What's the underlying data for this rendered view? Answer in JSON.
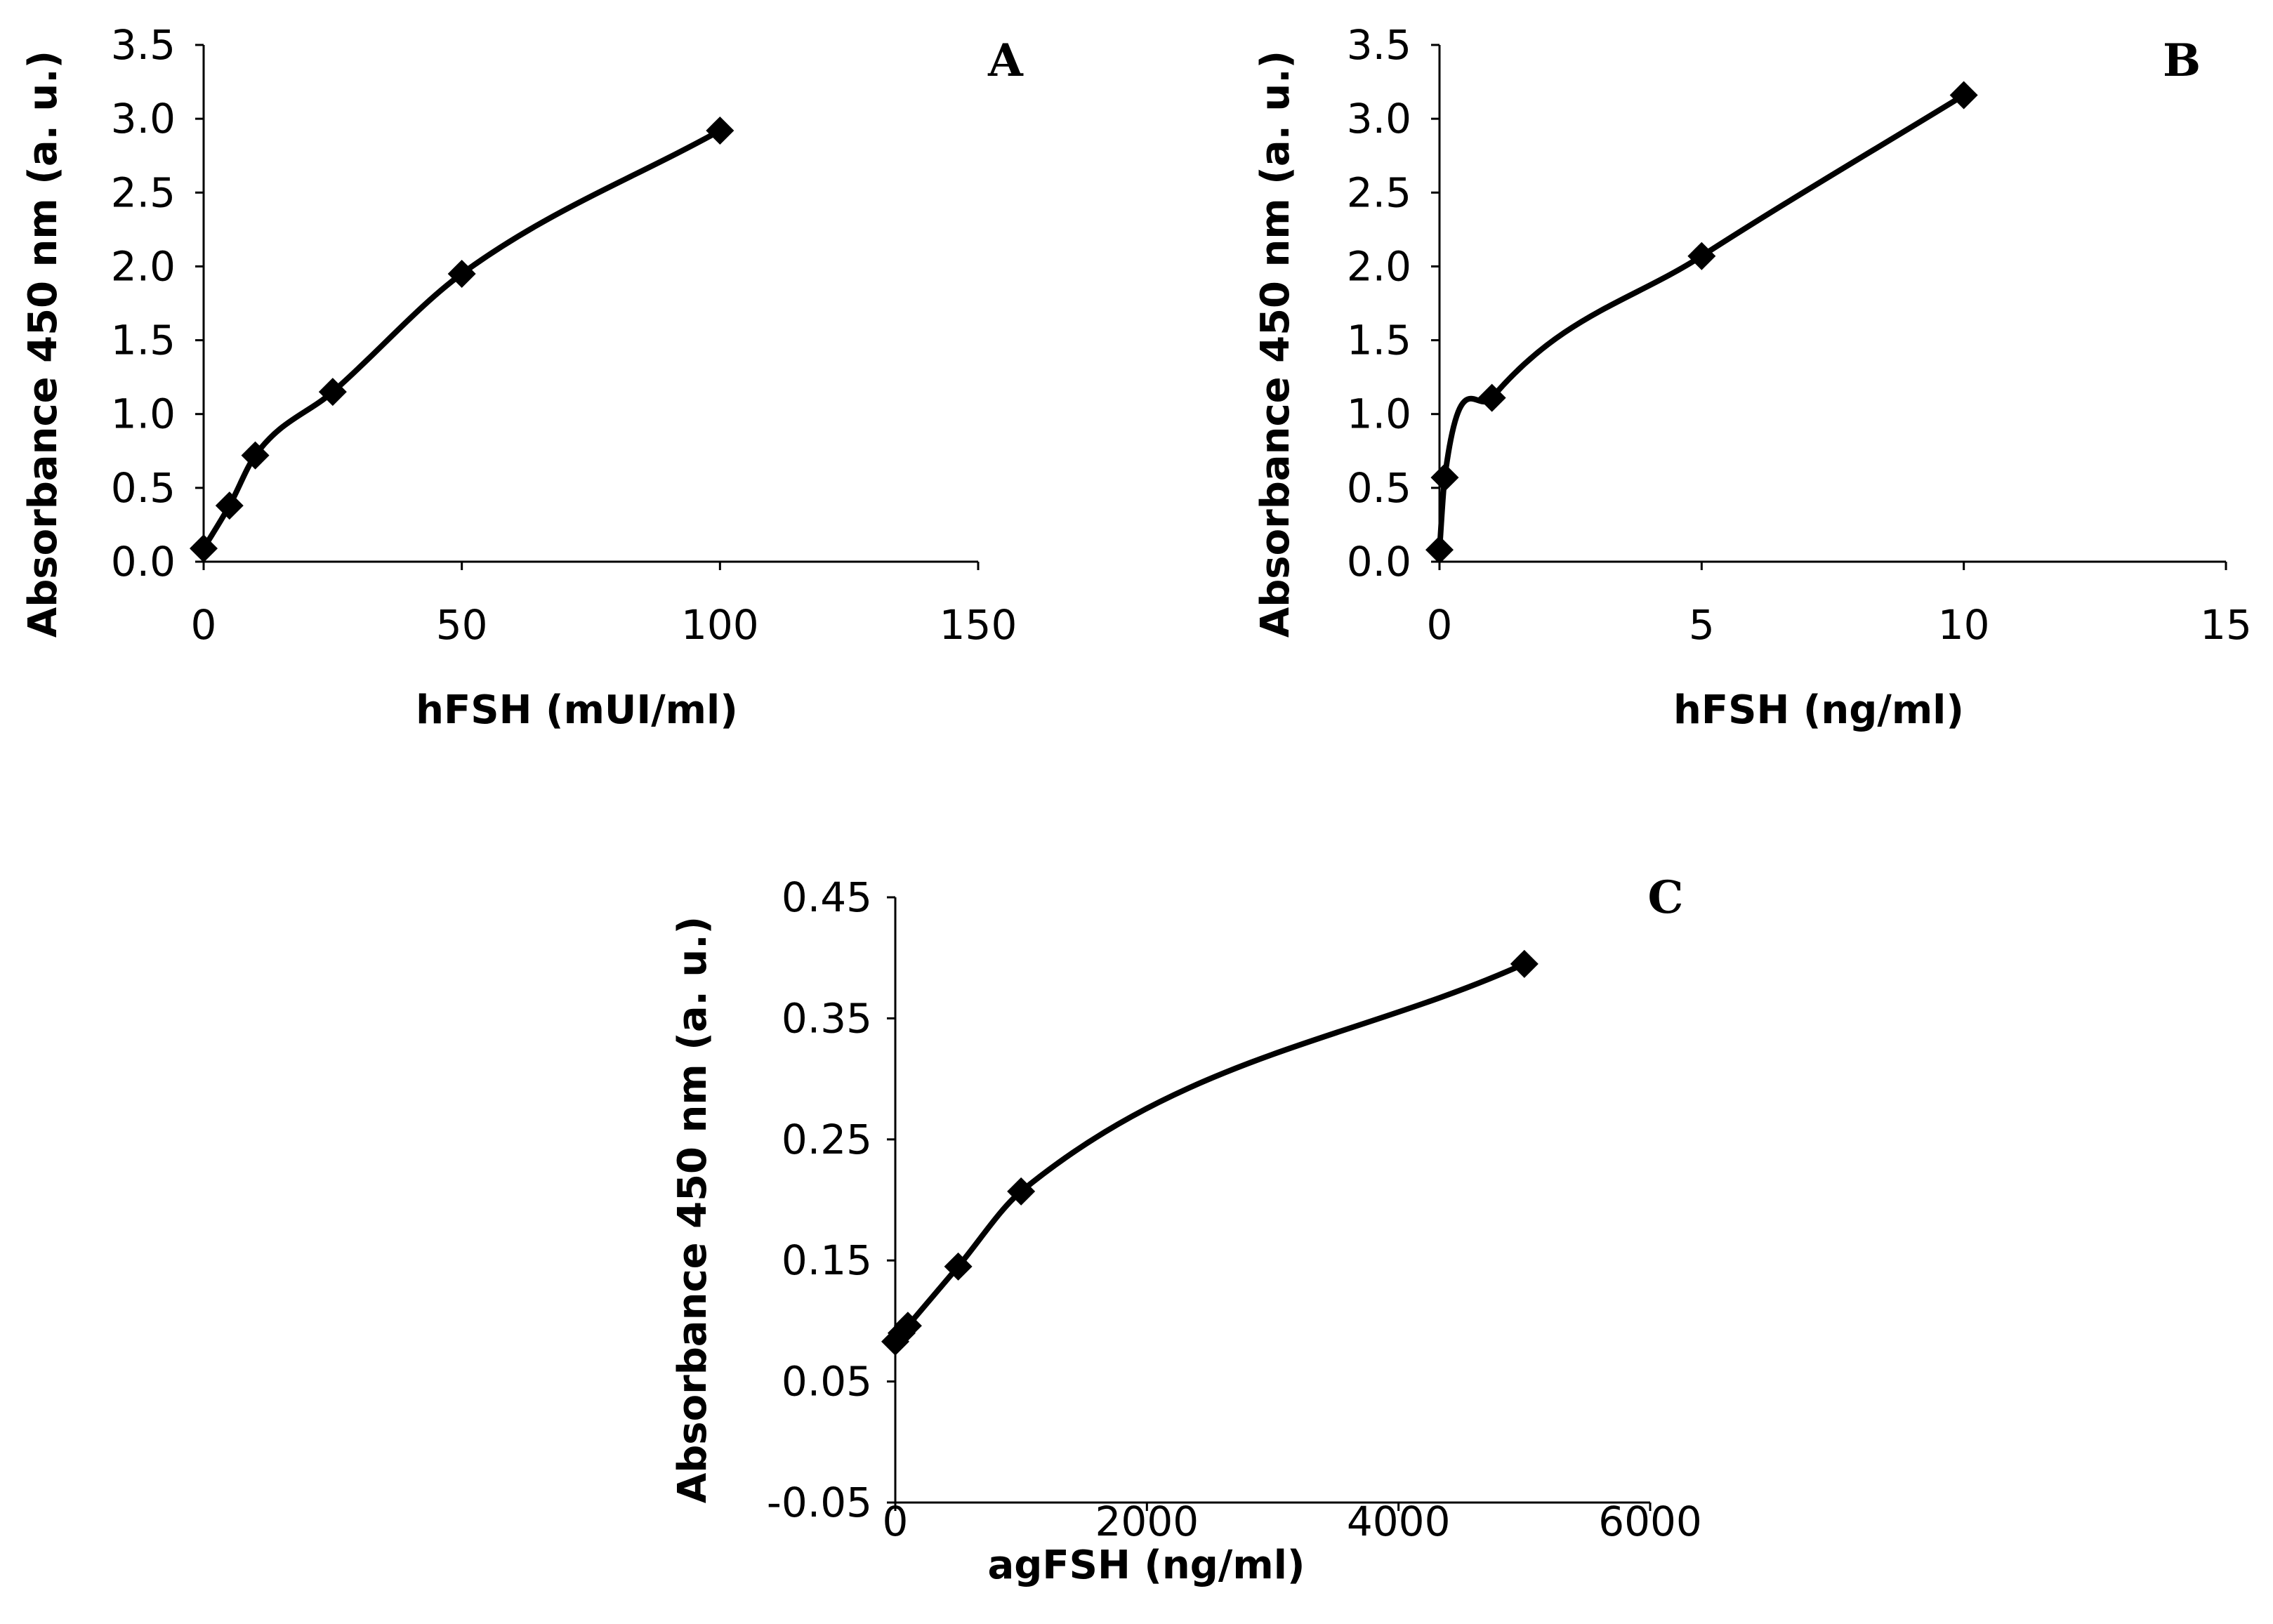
{
  "chart_data": [
    {
      "type": "line",
      "panel": "A",
      "xlabel": "hFSH (mUI/ml)",
      "ylabel": "Absorbance  450 nm (a. u.)",
      "xlim": [
        0,
        150
      ],
      "ylim": [
        0,
        3.5
      ],
      "xticks": [
        0,
        50,
        100,
        150
      ],
      "xtick_labels": [
        "0",
        "50",
        "100",
        "150"
      ],
      "yticks": [
        0,
        0.5,
        1,
        1.5,
        2,
        2.5,
        3,
        3.5
      ],
      "ytick_labels": [
        "0.0",
        "0.5",
        "1.0",
        "1.5",
        "2.0",
        "2.5",
        "3.0",
        "3.5"
      ],
      "grid": false,
      "marker": "diamond",
      "x": [
        0,
        5,
        10,
        25,
        50,
        100
      ],
      "y": [
        0.09,
        0.38,
        0.72,
        1.15,
        1.95,
        2.92
      ]
    },
    {
      "type": "line",
      "panel": "B",
      "xlabel": "hFSH (ng/ml)",
      "ylabel": "Absorbance  450 nm (a. u.)",
      "xlim": [
        0,
        15
      ],
      "ylim": [
        0,
        3.5
      ],
      "xticks": [
        0,
        5,
        10,
        15
      ],
      "xtick_labels": [
        "0",
        "5",
        "10",
        "15"
      ],
      "yticks": [
        0,
        0.5,
        1,
        1.5,
        2,
        2.5,
        3,
        3.5
      ],
      "ytick_labels": [
        "0.0",
        "0.5",
        "1.0",
        "1.5",
        "2.0",
        "2.5",
        "3.0",
        "3.5"
      ],
      "grid": false,
      "marker": "diamond",
      "x": [
        0,
        0.1,
        1,
        5,
        10
      ],
      "y": [
        0.08,
        0.57,
        1.11,
        2.07,
        3.16
      ]
    },
    {
      "type": "line",
      "panel": "C",
      "xlabel": "agFSH  (ng/ml)",
      "ylabel": "Absorbance  450 nm (a. u.)",
      "xlim": [
        0,
        6000
      ],
      "ylim": [
        -0.05,
        0.45
      ],
      "xticks": [
        0,
        2000,
        4000,
        6000
      ],
      "xtick_labels": [
        "0",
        "2000",
        "4000",
        "6000"
      ],
      "yticks": [
        -0.05,
        0.05,
        0.15,
        0.25,
        0.35,
        0.45
      ],
      "ytick_labels": [
        "-0.05",
        "0.05",
        "0.15",
        "0.25",
        "0.35",
        "0.45"
      ],
      "grid": false,
      "marker": "diamond",
      "x": [
        0,
        50,
        100,
        500,
        1000,
        5000
      ],
      "y": [
        0.083,
        0.09,
        0.096,
        0.145,
        0.207,
        0.395
      ]
    }
  ]
}
